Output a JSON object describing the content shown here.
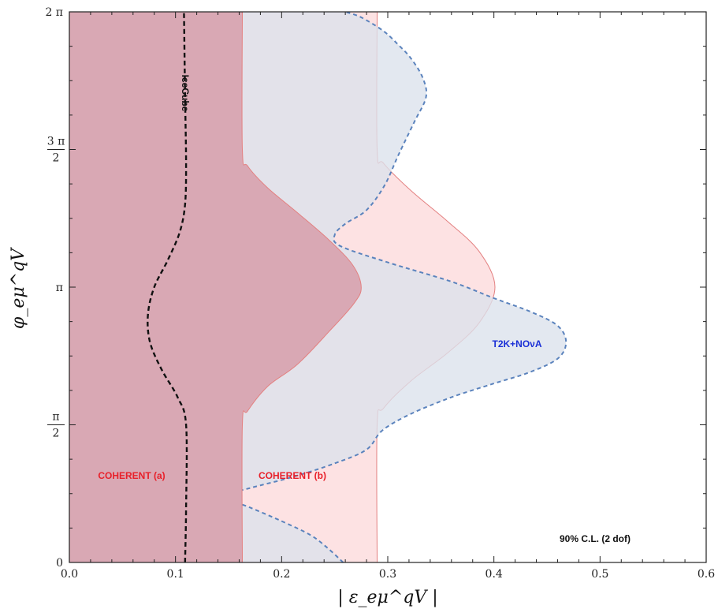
{
  "chart_data": {
    "type": "area",
    "xlabel": "| ε_eμ^qV |",
    "ylabel": "φ_eμ^qV",
    "xlim": [
      0.0,
      0.6
    ],
    "ylim": [
      "0",
      "2 π"
    ],
    "x_ticks": [
      "0.0",
      "0.1",
      "0.2",
      "0.3",
      "0.4",
      "0.5",
      "0.6"
    ],
    "y_ticks": [
      "0",
      "π/2",
      "π",
      "3 π/2",
      "2 π"
    ],
    "grid": false,
    "legend": "none",
    "colors": {
      "coherent_a": "#d9a8b4",
      "coherent_b": "#fde2e3",
      "coherent_edge": "#e38080",
      "t2k_fill": "#dbe2ec",
      "t2k_edge": "#5b83bd",
      "icecube": "#111111"
    },
    "annotations": {
      "coherent_a": "COHERENT (a)",
      "coherent_b": "COHERENT (b)",
      "t2k": "T2K+NOνA",
      "icecube": "IceCube",
      "cl": "90% C.L. (2 dof)"
    },
    "series": [
      {
        "name": "COHERENT (a)",
        "style": "filled-region",
        "boundary": [
          [
            0.163,
            0.0
          ],
          [
            0.163,
            0.5
          ],
          [
            0.168,
            0.55
          ],
          [
            0.187,
            0.64
          ],
          [
            0.215,
            0.72
          ],
          [
            0.245,
            0.84
          ],
          [
            0.268,
            0.94
          ],
          [
            0.275,
            1.0
          ],
          [
            0.267,
            1.08
          ],
          [
            0.245,
            1.17
          ],
          [
            0.215,
            1.27
          ],
          [
            0.187,
            1.36
          ],
          [
            0.168,
            1.44
          ],
          [
            0.163,
            1.5
          ],
          [
            0.163,
            2.0
          ]
        ]
      },
      {
        "name": "COHERENT (b)",
        "style": "filled-region",
        "boundary": [
          [
            0.29,
            0.0
          ],
          [
            0.29,
            0.5
          ],
          [
            0.296,
            0.56
          ],
          [
            0.322,
            0.66
          ],
          [
            0.356,
            0.76
          ],
          [
            0.386,
            0.87
          ],
          [
            0.401,
            1.0
          ],
          [
            0.386,
            1.13
          ],
          [
            0.356,
            1.24
          ],
          [
            0.322,
            1.35
          ],
          [
            0.296,
            1.45
          ],
          [
            0.29,
            1.5
          ],
          [
            0.29,
            2.0
          ]
        ]
      },
      {
        "name": "T2K+NOνA",
        "style": "dashed-filled-region",
        "boundary": [
          [
            0.258,
            0.0
          ],
          [
            0.244,
            0.05
          ],
          [
            0.227,
            0.1
          ],
          [
            0.2,
            0.15
          ],
          [
            0.17,
            0.2
          ],
          [
            0.145,
            0.24
          ],
          [
            0.17,
            0.27
          ],
          [
            0.21,
            0.31
          ],
          [
            0.25,
            0.36
          ],
          [
            0.28,
            0.41
          ],
          [
            0.295,
            0.48
          ],
          [
            0.322,
            0.54
          ],
          [
            0.36,
            0.6
          ],
          [
            0.4,
            0.65
          ],
          [
            0.433,
            0.69
          ],
          [
            0.46,
            0.74
          ],
          [
            0.468,
            0.8
          ],
          [
            0.46,
            0.86
          ],
          [
            0.435,
            0.91
          ],
          [
            0.4,
            0.96
          ],
          [
            0.36,
            1.02
          ],
          [
            0.3,
            1.09
          ],
          [
            0.255,
            1.15
          ],
          [
            0.25,
            1.19
          ],
          [
            0.26,
            1.23
          ],
          [
            0.28,
            1.28
          ],
          [
            0.297,
            1.37
          ],
          [
            0.31,
            1.48
          ],
          [
            0.325,
            1.6
          ],
          [
            0.336,
            1.69
          ],
          [
            0.333,
            1.76
          ],
          [
            0.322,
            1.83
          ],
          [
            0.31,
            1.88
          ],
          [
            0.296,
            1.93
          ],
          [
            0.275,
            1.98
          ],
          [
            0.26,
            2.0
          ]
        ]
      },
      {
        "name": "IceCube",
        "style": "dashed-line",
        "points": [
          [
            0.109,
            0.0
          ],
          [
            0.11,
            0.2
          ],
          [
            0.11,
            0.5
          ],
          [
            0.102,
            0.6
          ],
          [
            0.087,
            0.7
          ],
          [
            0.076,
            0.8
          ],
          [
            0.074,
            0.9
          ],
          [
            0.08,
            1.0
          ],
          [
            0.093,
            1.1
          ],
          [
            0.104,
            1.2
          ],
          [
            0.109,
            1.3
          ],
          [
            0.11,
            1.45
          ],
          [
            0.109,
            1.7
          ],
          [
            0.108,
            2.0
          ]
        ]
      }
    ]
  }
}
